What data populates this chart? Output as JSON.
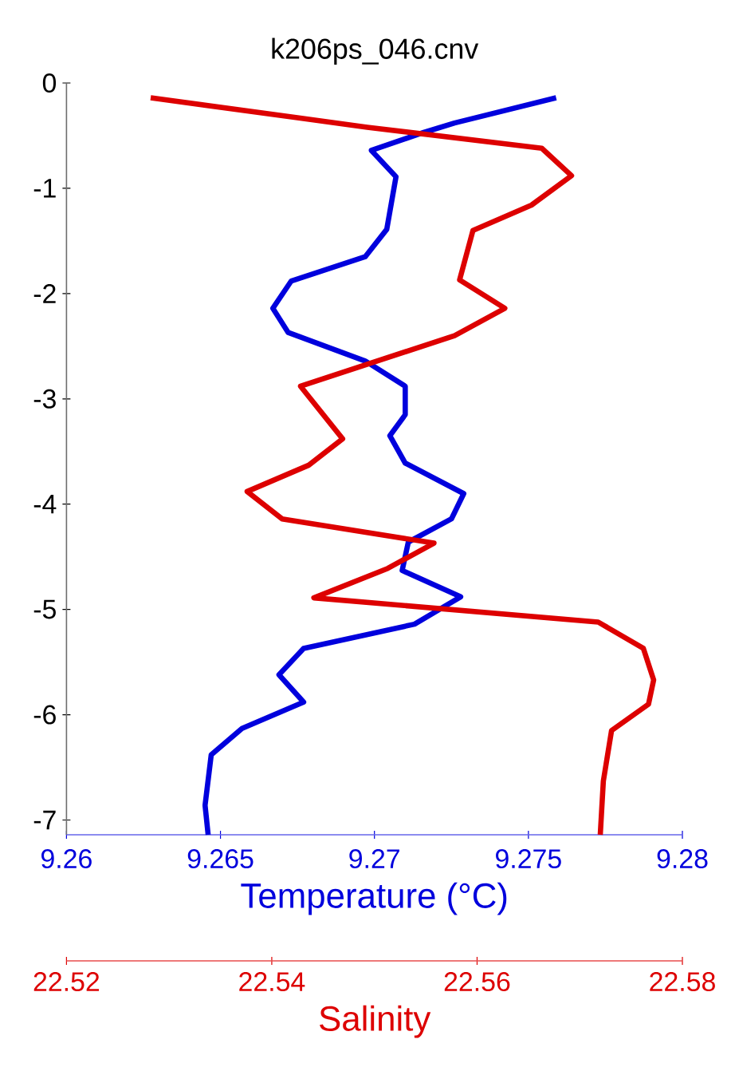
{
  "chart_data": {
    "type": "line",
    "title": "k206ps_046.cnv",
    "xlabel": "Temperature (°C)",
    "x2label": "Salinity",
    "xlim": [
      9.26,
      9.28
    ],
    "xticks": [
      9.26,
      9.265,
      9.27,
      9.275,
      9.28
    ],
    "x2lim": [
      22.52,
      22.58
    ],
    "x2ticks": [
      22.52,
      22.54,
      22.56,
      22.58
    ],
    "ylim": [
      -7.14,
      0
    ],
    "yticks": [
      0,
      -1,
      -2,
      -3,
      -4,
      -5,
      -6,
      -7
    ],
    "series": [
      {
        "color": "#0000dd",
        "x": [
          9.2759,
          9.2726,
          9.2716,
          9.2699,
          9.2707,
          9.2704,
          9.2697,
          9.2673,
          9.2667,
          9.2672,
          9.2697,
          9.271,
          9.271,
          9.2705,
          9.271,
          9.2729,
          9.2725,
          9.2711,
          9.2709,
          9.2728,
          9.2713,
          9.2677,
          9.2669,
          9.2677,
          9.2657,
          9.2647,
          9.2645,
          9.2646
        ],
        "values": [
          -0.14,
          -0.38,
          -0.47,
          -0.64,
          -0.89,
          -1.39,
          -1.65,
          -1.88,
          -2.14,
          -2.37,
          -2.64,
          -2.88,
          -3.15,
          -3.35,
          -3.61,
          -3.9,
          -4.14,
          -4.36,
          -4.63,
          -4.88,
          -5.14,
          -5.37,
          -5.62,
          -5.88,
          -6.13,
          -6.38,
          -6.86,
          -7.14
        ]
      },
      {
        "color": "#dd0000",
        "axis": "x2",
        "x": [
          22.5282,
          22.5425,
          22.5493,
          22.5663,
          22.5692,
          22.5653,
          22.5596,
          22.5583,
          22.5627,
          22.5578,
          22.5428,
          22.5469,
          22.5436,
          22.5376,
          22.541,
          22.5558,
          22.5513,
          22.5441,
          22.5718,
          22.5762,
          22.5772,
          22.5767,
          22.5731,
          22.5723,
          22.572
        ],
        "values": [
          -0.14,
          -0.33,
          -0.42,
          -0.62,
          -0.88,
          -1.16,
          -1.4,
          -1.87,
          -2.14,
          -2.4,
          -2.88,
          -3.38,
          -3.63,
          -3.88,
          -4.14,
          -4.37,
          -4.61,
          -4.89,
          -5.12,
          -5.37,
          -5.67,
          -5.9,
          -6.15,
          -6.63,
          -7.14
        ]
      }
    ]
  }
}
